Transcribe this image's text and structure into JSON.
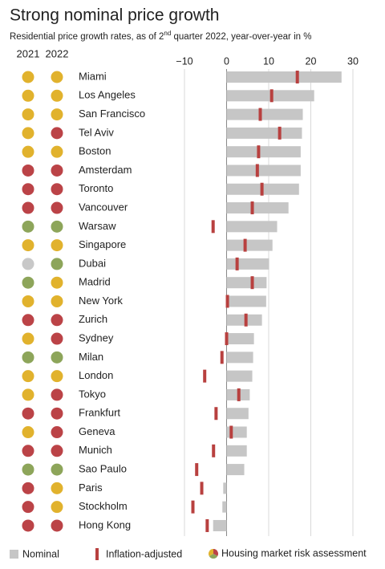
{
  "chart_data": {
    "type": "bar",
    "orientation": "horizontal",
    "title": "Strong nominal price growth",
    "subtitle": [
      "Residential price growth rates, as of 2",
      "nd",
      " quarter 2022, year-over-year in %"
    ],
    "categories": [
      "Miami",
      "Los Angeles",
      "San Francisco",
      "Tel Aviv",
      "Boston",
      "Amsterdam",
      "Toronto",
      "Vancouver",
      "Warsaw",
      "Singapore",
      "Dubai",
      "Madrid",
      "New York",
      "Zurich",
      "Sydney",
      "Milan",
      "London",
      "Tokyo",
      "Frankfurt",
      "Geneva",
      "Munich",
      "Sao Paulo",
      "Paris",
      "Stockholm",
      "Hong Kong"
    ],
    "series": [
      {
        "name": "Nominal",
        "color": "#c6c6c6",
        "values": [
          27.3,
          20.8,
          18.1,
          17.9,
          17.6,
          17.6,
          17.2,
          14.7,
          12.0,
          10.9,
          10.1,
          9.5,
          9.4,
          8.4,
          6.5,
          6.3,
          6.1,
          5.5,
          5.2,
          4.8,
          4.8,
          4.2,
          -0.8,
          -1.0,
          -3.2
        ]
      },
      {
        "name": "Inflation-adjusted",
        "color": "#b8403f",
        "values": [
          16.8,
          10.7,
          8.0,
          12.6,
          7.6,
          7.3,
          8.4,
          6.1,
          -3.2,
          4.4,
          2.5,
          6.1,
          0.2,
          4.6,
          0.0,
          -1.1,
          -5.2,
          2.9,
          -2.5,
          1.1,
          -3.1,
          -7.1,
          -5.9,
          -8.0,
          -4.6
        ]
      }
    ],
    "risk_legend": "Housing market risk assessment",
    "risk_columns": [
      {
        "name": "2021",
        "colors": [
          "#e1b22d",
          "#e1b22d",
          "#e1b22d",
          "#e1b22d",
          "#e1b22d",
          "#bb4347",
          "#bb4347",
          "#bb4347",
          "#8da55a",
          "#e1b22d",
          "#c8c8c8",
          "#8da55a",
          "#e1b22d",
          "#bb4347",
          "#e1b22d",
          "#8da55a",
          "#e1b22d",
          "#e1b22d",
          "#bb4347",
          "#e1b22d",
          "#bb4347",
          "#8da55a",
          "#bb4347",
          "#bb4347",
          "#bb4347"
        ]
      },
      {
        "name": "2022",
        "colors": [
          "#e1b22d",
          "#e1b22d",
          "#e1b22d",
          "#bb4347",
          "#e1b22d",
          "#bb4347",
          "#bb4347",
          "#bb4347",
          "#8da55a",
          "#e1b22d",
          "#8da55a",
          "#e1b22d",
          "#e1b22d",
          "#bb4347",
          "#bb4347",
          "#8da55a",
          "#e1b22d",
          "#bb4347",
          "#bb4347",
          "#bb4347",
          "#bb4347",
          "#8da55a",
          "#e1b22d",
          "#e1b22d",
          "#bb4347"
        ]
      }
    ],
    "xlim": [
      -10,
      30
    ],
    "xticks": [
      {
        "value": -10,
        "label": "−10"
      },
      0,
      10,
      20,
      30
    ],
    "grid": true
  }
}
